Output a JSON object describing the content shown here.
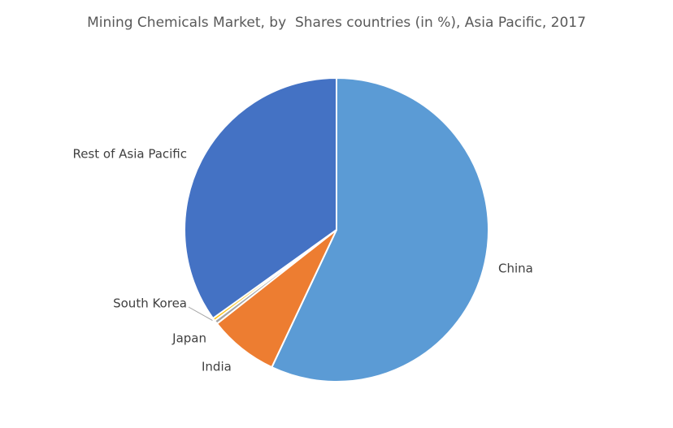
{
  "chart_data": {
    "type": "pie",
    "title": "Mining Chemicals Market, by  Shares countries (in %), Asia Pacific, 2017",
    "categories": [
      "China",
      "India",
      "Japan",
      "South Korea",
      "Rest of Asia Pacific"
    ],
    "values": [
      57,
      7.4,
      0.4,
      0.3,
      34.9
    ],
    "colors": [
      "#5b9bd5",
      "#ed7d31",
      "#a5a5a5",
      "#ffc000",
      "#4472c4"
    ]
  }
}
